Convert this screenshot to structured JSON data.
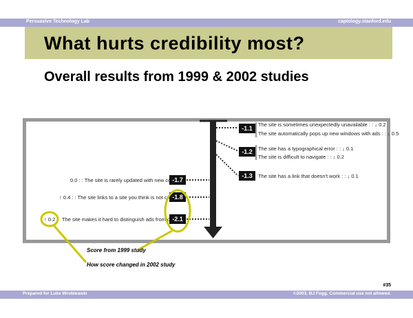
{
  "header": {
    "lab": "Persuasive Technology Lab",
    "site": "captology.stanford.edu"
  },
  "slide": {
    "title": "What hurts credibility most?",
    "subtitle": "Overall results from 1999 & 2002 studies"
  },
  "figure": {
    "right_items": [
      {
        "score": "-1.1",
        "lines": [
          "The site is sometimes unexpectedly unavailable : : ↓ 0.2",
          "The site automatically pops up new windows with ads : : ↓ 0.5"
        ]
      },
      {
        "score": "-1.2",
        "lines": [
          "The site has a typographical error : : ↓ 0.1",
          "The site is difficult to navigate : : ↓ 0.2"
        ]
      },
      {
        "score": "-1.3",
        "lines": [
          "The site has a link that doesn't work : : ↓ 0.1"
        ]
      }
    ],
    "left_items": [
      {
        "score": "-1.7",
        "text": "0.0 : : The site is rarely updated with new content"
      },
      {
        "score": "-1.8",
        "text": "↑ 0.4 : : The site links to a site you think is not credible"
      },
      {
        "score": "-2.1",
        "change": "↑ 0.2",
        "text": "The site makes it hard to distinguish ads from content"
      }
    ]
  },
  "callouts": {
    "score_label": "Score from 1999 study",
    "change_label": "How score changed in 2002 study"
  },
  "footer": {
    "slide_number": "#35",
    "prepared_for": "Prepared for Luke Wroblewski",
    "copyright": "©2003, BJ Fogg. Commercial use not allowed."
  },
  "colors": {
    "bar": "#a9a8d4",
    "title_band": "#cbcc8f",
    "highlight": "#c8c800"
  }
}
